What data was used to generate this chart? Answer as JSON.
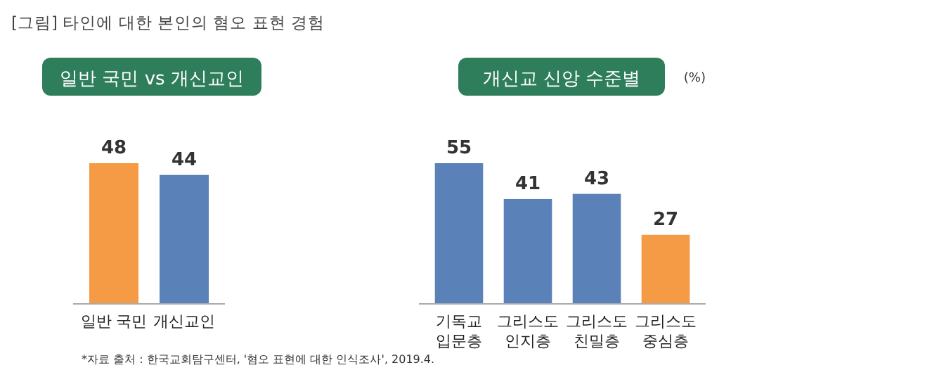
{
  "chart_data": [
    {
      "type": "bar",
      "title": "[그림] 타인에 대한 본인의 혐오 표현 경험",
      "subtitle": "일반 국민 vs 개신교인",
      "categories": [
        "일반 국민",
        "개신교인"
      ],
      "values": [
        48,
        44
      ],
      "colors": [
        "#f59a45",
        "#5b82b8"
      ],
      "data_labels": true,
      "annotations": [
        "*자료 출처 : 한국교회탐구센터, '혐오 표현에 대한 인식조사', 2019.4."
      ]
    },
    {
      "type": "bar",
      "subtitle": "개신교 신앙 수준별",
      "ylabel": "(%)",
      "categories": [
        "기독교\n입문층",
        "그리스도\n인지층",
        "그리스도\n친밀층",
        "그리스도\n중심층"
      ],
      "values": [
        55,
        41,
        43,
        27
      ],
      "colors": [
        "#5b82b8",
        "#5b82b8",
        "#5b82b8",
        "#f59a45"
      ],
      "data_labels": true
    }
  ]
}
